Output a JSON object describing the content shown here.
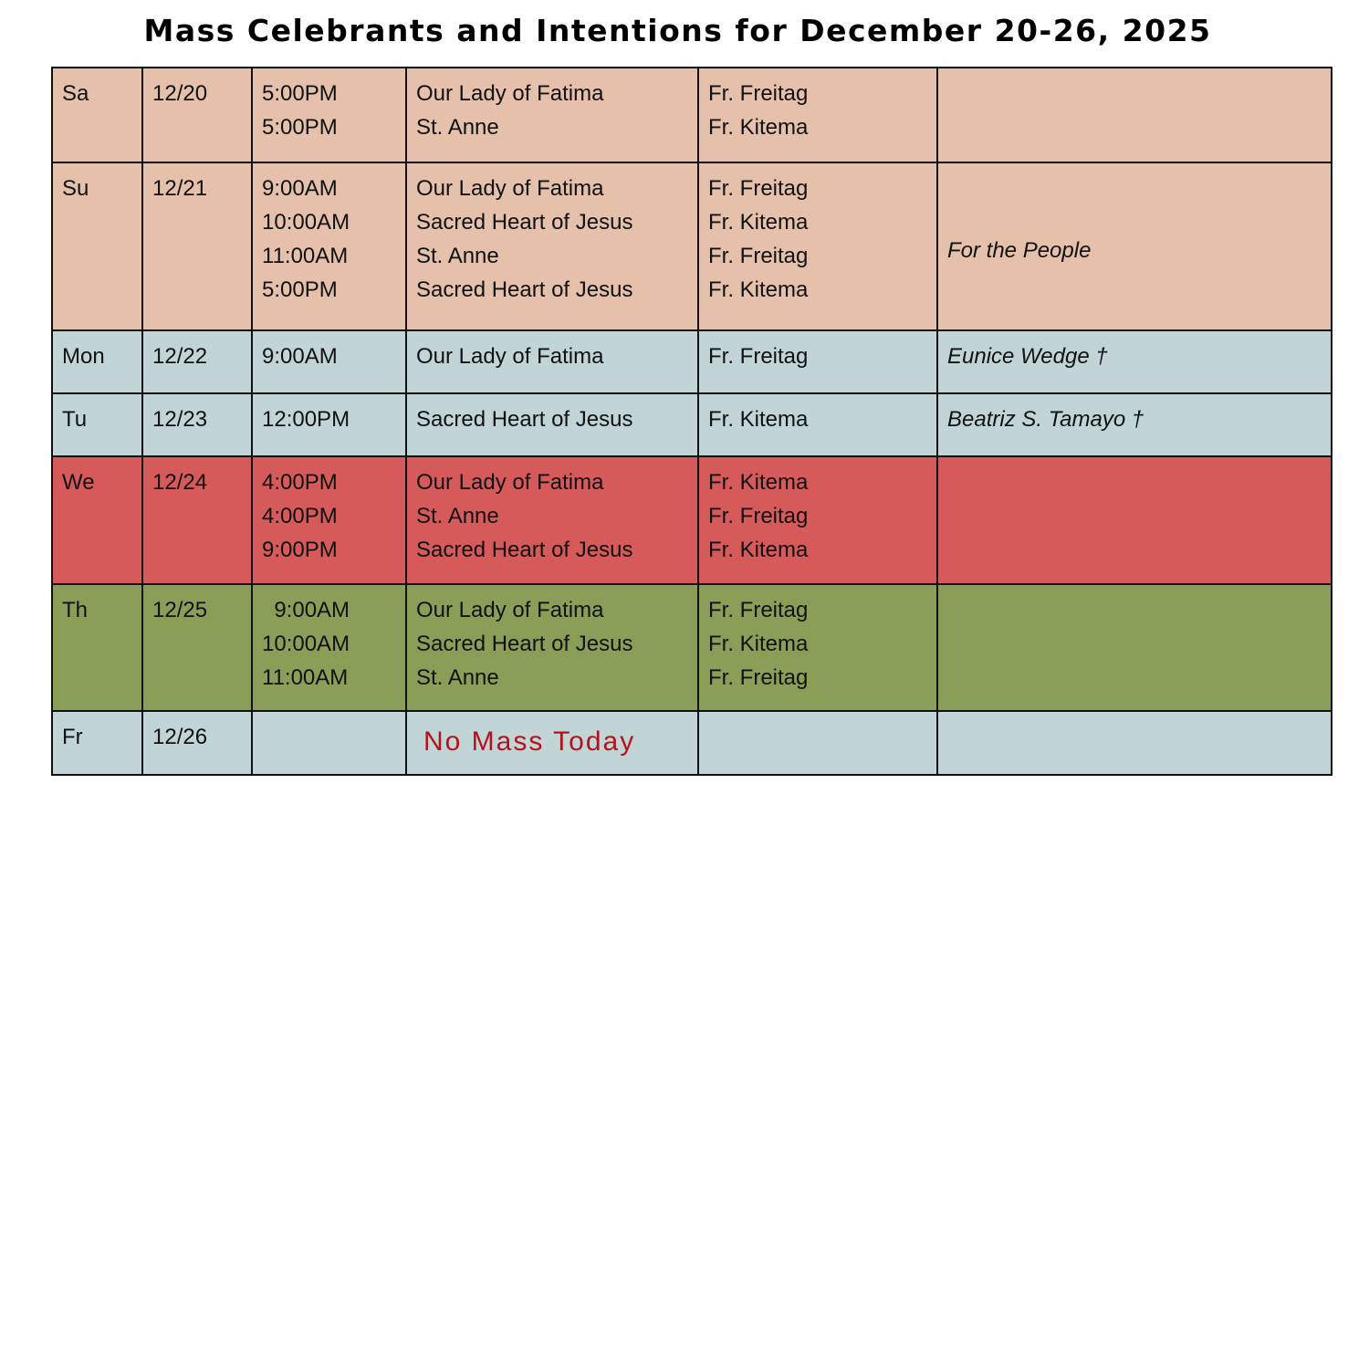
{
  "title": "Mass Celebrants and Intentions for December 20-26, 2025",
  "colors": {
    "weekend": "#e5c1ab",
    "weekday": "#c1d4d6",
    "christmas_eve": "#d65a5a",
    "christmas": "#8b9e58",
    "no_mass_text": "#b5121b"
  },
  "rows": [
    {
      "day": "Sa",
      "date": "12/20",
      "times": [
        "5:00PM",
        "5:00PM"
      ],
      "churches": [
        "Our Lady of Fatima",
        "St. Anne"
      ],
      "celebrants": [
        "Fr. Freitag",
        "Fr. Kitema"
      ],
      "intention": "",
      "color": "weekend"
    },
    {
      "day": "Su",
      "date": "12/21",
      "times": [
        "9:00AM",
        "10:00AM",
        "11:00AM",
        "5:00PM"
      ],
      "churches": [
        "Our Lady of Fatima",
        "Sacred Heart of Jesus",
        "St. Anne",
        "Sacred Heart of Jesus"
      ],
      "celebrants": [
        "Fr. Freitag",
        "Fr. Kitema",
        "Fr. Freitag",
        "Fr. Kitema"
      ],
      "intention": "For the People",
      "color": "weekend"
    },
    {
      "day": "Mon",
      "date": "12/22",
      "times": [
        "9:00AM"
      ],
      "churches": [
        "Our Lady of Fatima"
      ],
      "celebrants": [
        "Fr. Freitag"
      ],
      "intention": "Eunice Wedge †",
      "color": "weekday"
    },
    {
      "day": "Tu",
      "date": "12/23",
      "times": [
        "12:00PM"
      ],
      "churches": [
        "Sacred Heart of Jesus"
      ],
      "celebrants": [
        "Fr. Kitema"
      ],
      "intention": "Beatriz S. Tamayo †",
      "color": "weekday"
    },
    {
      "day": "We",
      "date": "12/24",
      "times": [
        "4:00PM",
        "4:00PM",
        "9:00PM"
      ],
      "churches": [
        "Our Lady of Fatima",
        "St. Anne",
        "Sacred Heart of Jesus"
      ],
      "celebrants": [
        "Fr. Kitema",
        "Fr. Freitag",
        "Fr. Kitema"
      ],
      "intention": "",
      "color": "christmas_eve"
    },
    {
      "day": "Th",
      "date": "12/25",
      "times": [
        "  9:00AM",
        "10:00AM",
        "11:00AM"
      ],
      "churches": [
        "Our Lady of Fatima",
        "Sacred Heart of Jesus",
        "St. Anne"
      ],
      "celebrants": [
        "Fr. Freitag",
        "Fr. Kitema",
        "Fr. Freitag"
      ],
      "intention": "",
      "color": "christmas"
    },
    {
      "day": "Fr",
      "date": "12/26",
      "times": [],
      "churches": [],
      "celebrants": [],
      "intention": "",
      "color": "weekday",
      "note": "No Mass Today"
    }
  ]
}
